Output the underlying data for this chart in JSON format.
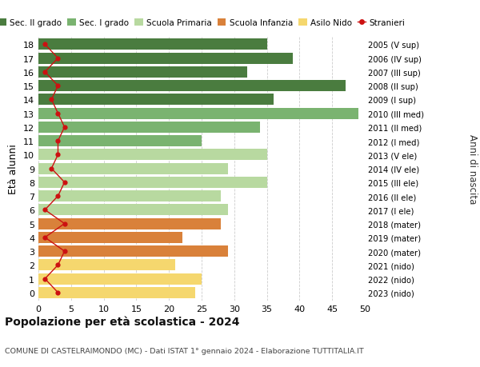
{
  "ages": [
    18,
    17,
    16,
    15,
    14,
    13,
    12,
    11,
    10,
    9,
    8,
    7,
    6,
    5,
    4,
    3,
    2,
    1,
    0
  ],
  "bar_values": [
    35,
    39,
    32,
    47,
    36,
    49,
    34,
    25,
    35,
    29,
    35,
    28,
    29,
    28,
    22,
    29,
    21,
    25,
    24
  ],
  "bar_colors": [
    "#4a7c3f",
    "#4a7c3f",
    "#4a7c3f",
    "#4a7c3f",
    "#4a7c3f",
    "#7ab370",
    "#7ab370",
    "#7ab370",
    "#b8d9a0",
    "#b8d9a0",
    "#b8d9a0",
    "#b8d9a0",
    "#b8d9a0",
    "#d9813a",
    "#d9813a",
    "#d9813a",
    "#f5d76e",
    "#f5d76e",
    "#f5d76e"
  ],
  "stranieri_values": [
    1,
    3,
    1,
    3,
    2,
    3,
    4,
    3,
    3,
    2,
    4,
    3,
    1,
    4,
    1,
    4,
    3,
    1,
    3
  ],
  "right_labels": [
    "2005 (V sup)",
    "2006 (IV sup)",
    "2007 (III sup)",
    "2008 (II sup)",
    "2009 (I sup)",
    "2010 (III med)",
    "2011 (II med)",
    "2012 (I med)",
    "2013 (V ele)",
    "2014 (IV ele)",
    "2015 (III ele)",
    "2016 (II ele)",
    "2017 (I ele)",
    "2018 (mater)",
    "2019 (mater)",
    "2020 (mater)",
    "2021 (nido)",
    "2022 (nido)",
    "2023 (nido)"
  ],
  "legend_labels": [
    "Sec. II grado",
    "Sec. I grado",
    "Scuola Primaria",
    "Scuola Infanzia",
    "Asilo Nido",
    "Stranieri"
  ],
  "legend_colors": [
    "#4a7c3f",
    "#7ab370",
    "#b8d9a0",
    "#d9813a",
    "#f5d76e",
    "#cc1111"
  ],
  "ylabel": "Età alunni",
  "right_ylabel": "Anni di nascita",
  "title": "Popolazione per età scolastica - 2024",
  "subtitle": "COMUNE DI CASTELRAIMONDO (MC) - Dati ISTAT 1° gennaio 2024 - Elaborazione TUTTITALIA.IT",
  "xlim": [
    0,
    50
  ],
  "xticks": [
    0,
    5,
    10,
    15,
    20,
    25,
    30,
    35,
    40,
    45,
    50
  ],
  "bg_color": "#ffffff",
  "grid_color": "#cccccc",
  "bar_height": 0.82,
  "stranieri_color": "#cc1111"
}
